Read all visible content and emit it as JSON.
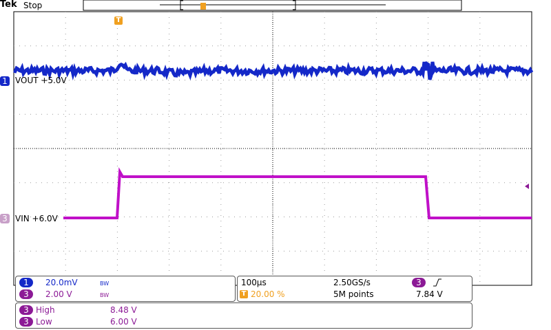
{
  "header": {
    "brand": "Tek",
    "status": "Stop",
    "trigger_marker": "T"
  },
  "channels": [
    {
      "number": "1",
      "label": "VOUT +5.0V"
    },
    {
      "number": "3",
      "label": "VIN +6.0V"
    }
  ],
  "vertical": [
    {
      "number": "1",
      "scale": "20.0mV",
      "bw": "BW"
    },
    {
      "number": "3",
      "scale": "2.00 V",
      "bw": "BW"
    }
  ],
  "horizontal": {
    "timebase": "100µs",
    "sample_rate": "2.50GS/s",
    "trigger_position_marker": "T",
    "trigger_position": "20.00 %",
    "record_length": "5M points"
  },
  "trigger": {
    "source": "3",
    "level": "7.84 V"
  },
  "measurements": [
    {
      "source": "3",
      "name": "High",
      "value": "8.48 V"
    },
    {
      "source": "3",
      "name": "Low",
      "value": "6.00 V"
    }
  ]
}
